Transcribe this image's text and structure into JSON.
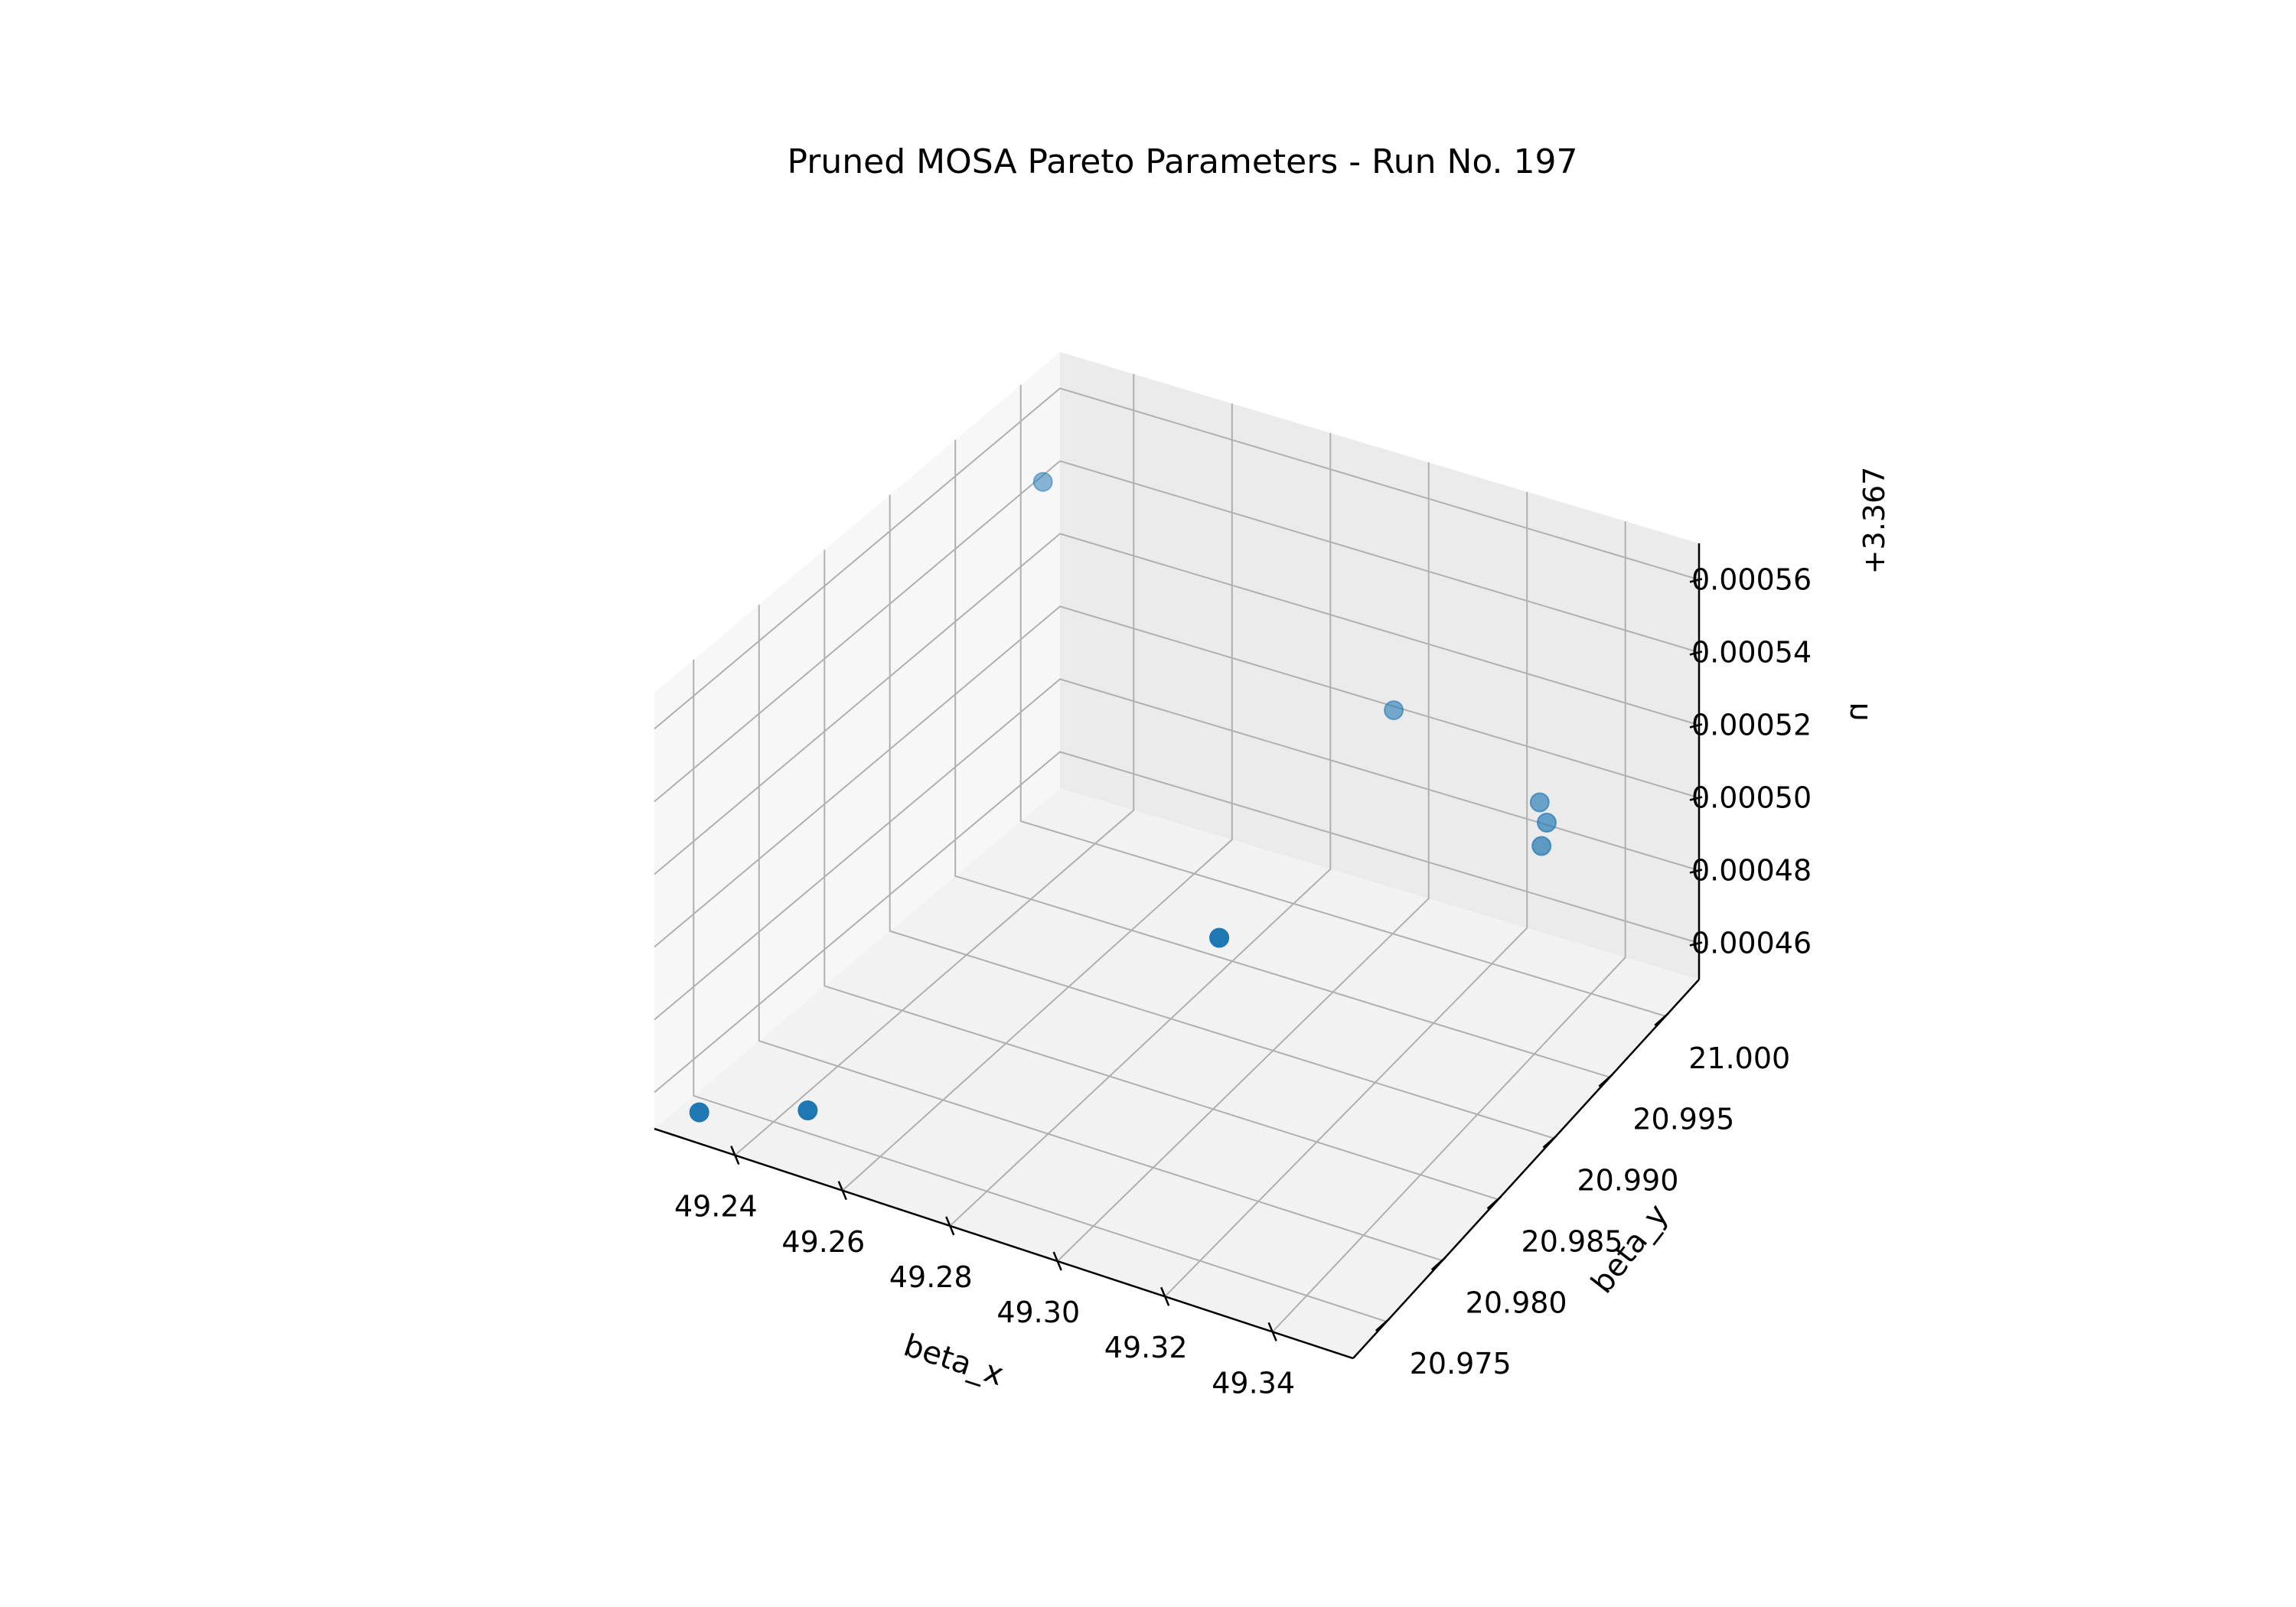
{
  "chart_data": {
    "type": "scatter",
    "projection": "3d",
    "title": "Pruned MOSA Pareto Parameters - Run No. 197",
    "xlabel": "beta_x",
    "ylabel": "beta_y",
    "zlabel": "n",
    "z_offset_label": "+3.367",
    "x_ticks": [
      49.24,
      49.26,
      49.28,
      49.3,
      49.32,
      49.34
    ],
    "x_tick_labels": [
      "49.24",
      "49.26",
      "49.28",
      "49.30",
      "49.32",
      "49.34"
    ],
    "y_ticks": [
      20.975,
      20.98,
      20.985,
      20.99,
      20.995,
      21.0
    ],
    "y_tick_labels": [
      "20.975",
      "20.980",
      "20.985",
      "20.990",
      "20.995",
      "21.000"
    ],
    "z_ticks": [
      0.00046,
      0.00048,
      0.0005,
      0.00052,
      0.00054,
      0.00056
    ],
    "z_tick_labels": [
      "0.00046",
      "0.00048",
      "0.00050",
      "0.00052",
      "0.00054",
      "0.00056"
    ],
    "xlim": [
      49.225,
      49.355
    ],
    "ylim": [
      20.972,
      21.003
    ],
    "zlim": [
      0.00045,
      0.00057
    ],
    "grid": true,
    "marker_color": "#1f77b4",
    "points": [
      {
        "x": 49.229,
        "y": 20.9738,
        "z": 0.000451
      },
      {
        "x": 49.23,
        "y": 20.9998,
        "z": 0.000546
      },
      {
        "x": 49.244,
        "y": 20.976,
        "z": 0.000452
      },
      {
        "x": 49.297,
        "y": 20.9868,
        "z": 0.00049
      },
      {
        "x": 49.305,
        "y": 20.998,
        "z": 0.00052
      },
      {
        "x": 49.337,
        "y": 20.9968,
        "z": 0.000512
      },
      {
        "x": 49.34,
        "y": 20.9961,
        "z": 0.00051
      },
      {
        "x": 49.341,
        "y": 20.9952,
        "z": 0.000507
      }
    ]
  }
}
